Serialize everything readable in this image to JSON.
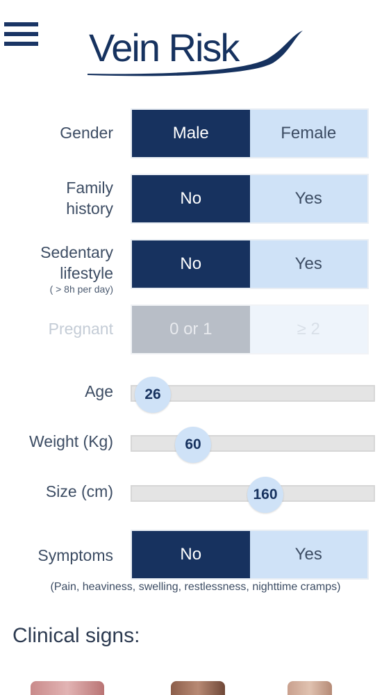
{
  "header": {
    "logo_text": "Vein Risk"
  },
  "form": {
    "gender": {
      "label": "Gender",
      "options": [
        "Male",
        "Female"
      ],
      "selected": "Male"
    },
    "family_history": {
      "label_line1": "Family",
      "label_line2": "history",
      "options": [
        "No",
        "Yes"
      ],
      "selected": "No"
    },
    "sedentary": {
      "label_line1": "Sedentary",
      "label_line2": "lifestyle",
      "hint": "( > 8h per day)",
      "options": [
        "No",
        "Yes"
      ],
      "selected": "No"
    },
    "pregnant": {
      "label": "Pregnant",
      "options": [
        "0 or 1",
        "≥ 2"
      ],
      "selected": "0 or 1",
      "disabled": true
    },
    "age": {
      "label": "Age",
      "value": "26"
    },
    "weight": {
      "label": "Weight (Kg)",
      "value": "60"
    },
    "size": {
      "label": "Size (cm)",
      "value": "160"
    },
    "symptoms": {
      "label": "Symptoms",
      "options": [
        "No",
        "Yes"
      ],
      "selected": "No",
      "note": "(Pain, heaviness, swelling, restlessness, nighttime cramps)"
    }
  },
  "clinical": {
    "title": "Clinical signs:"
  },
  "colors": {
    "primary": "#17325f",
    "light": "#cfe2f7",
    "disabled": "#b8bec7"
  }
}
